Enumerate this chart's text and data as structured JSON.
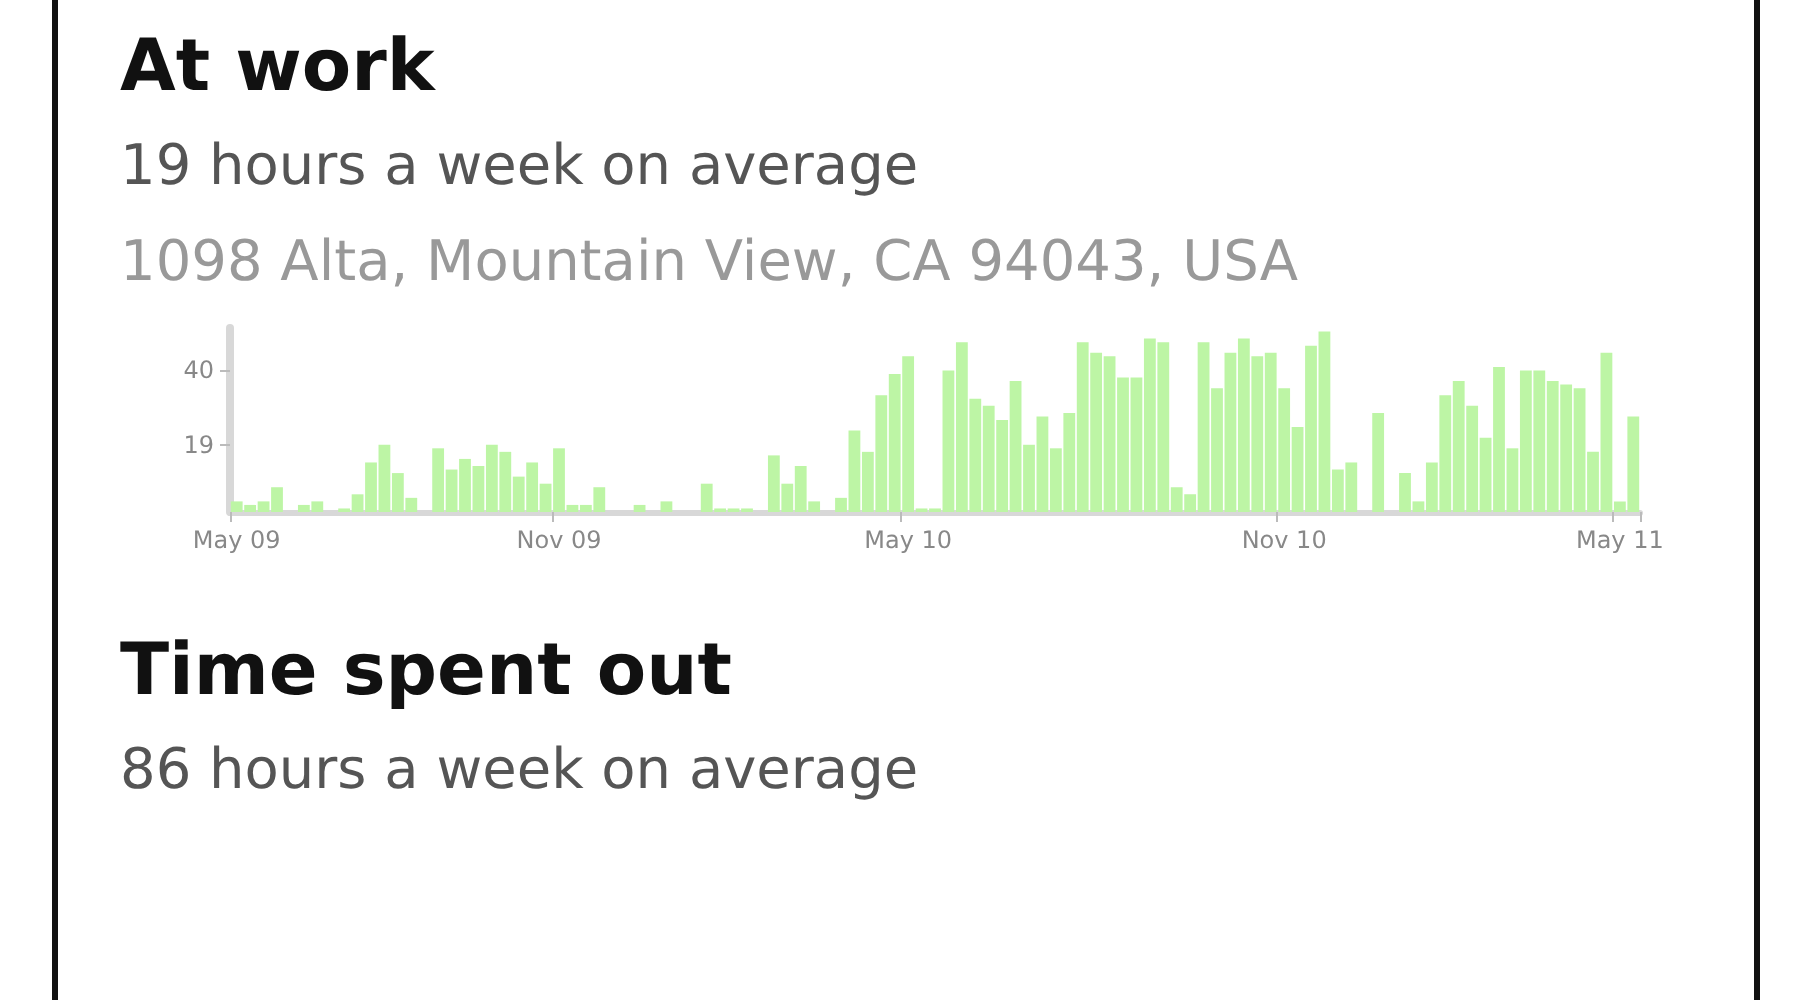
{
  "chart_data": [
    {
      "type": "bar",
      "title": "At work",
      "subtitle": "19 hours a week on average",
      "annotations": [
        "1098 Alta, Mountain View, CA 94043, USA"
      ],
      "categories": [
        "May 09",
        null,
        null,
        null,
        null,
        null,
        null,
        null,
        null,
        null,
        null,
        null,
        null,
        null,
        null,
        null,
        null,
        null,
        null,
        null,
        null,
        null,
        null,
        null,
        "Nov 09",
        null,
        null,
        null,
        null,
        null,
        null,
        null,
        null,
        null,
        null,
        null,
        null,
        null,
        null,
        null,
        null,
        null,
        null,
        null,
        null,
        null,
        null,
        null,
        null,
        null,
        "May 10",
        null,
        null,
        null,
        null,
        null,
        null,
        null,
        null,
        null,
        null,
        null,
        null,
        null,
        null,
        null,
        null,
        null,
        null,
        null,
        null,
        null,
        null,
        null,
        null,
        null,
        null,
        null,
        "Nov 10",
        null,
        null,
        null,
        null,
        null,
        null,
        null,
        null,
        null,
        null,
        null,
        null,
        null,
        null,
        null,
        null,
        null,
        null,
        null,
        null,
        null,
        null,
        null,
        null,
        "May 11",
        null
      ],
      "values": [
        3,
        2,
        3,
        7,
        0,
        2,
        3,
        0,
        1,
        5,
        14,
        19,
        11,
        4,
        0,
        18,
        12,
        15,
        13,
        19,
        17,
        10,
        14,
        8,
        18,
        2,
        2,
        7,
        0,
        0,
        2,
        0,
        3,
        0,
        0,
        8,
        1,
        1,
        1,
        0,
        16,
        8,
        13,
        3,
        0,
        4,
        23,
        17,
        33,
        39,
        44,
        1,
        1,
        40,
        48,
        32,
        30,
        26,
        37,
        19,
        27,
        18,
        28,
        48,
        45,
        44,
        38,
        38,
        49,
        48,
        7,
        5,
        48,
        35,
        45,
        49,
        44,
        45,
        35,
        24,
        47,
        51,
        12,
        14,
        0,
        28,
        0,
        11,
        3,
        14,
        33,
        37,
        30,
        21,
        41,
        18,
        40,
        40,
        37,
        36,
        35,
        17,
        45,
        3,
        27
      ],
      "color": "#bdf5a5",
      "ylim": [
        0,
        52
      ],
      "yticks": [
        19,
        40
      ],
      "grid": false
    },
    {
      "type": "other",
      "title": "Time spent out",
      "subtitle": "86 hours a week on average"
    }
  ]
}
